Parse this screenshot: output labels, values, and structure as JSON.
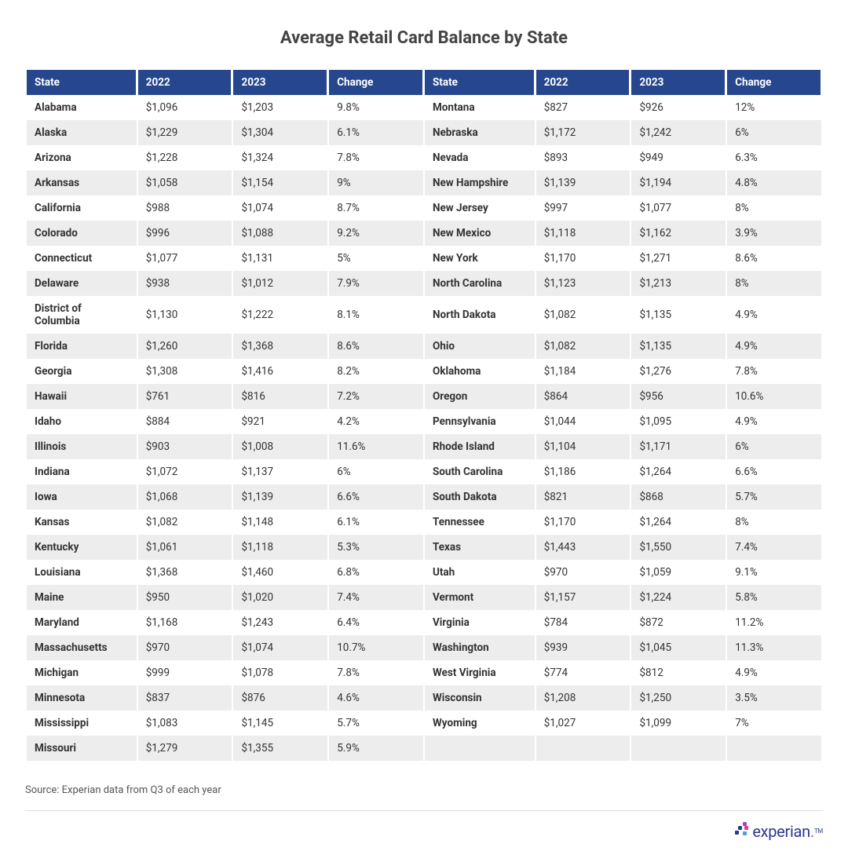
{
  "title": "Average Retail Card Balance by State",
  "source": "Source: Experian data from Q3 of each year",
  "logo_text": "experian",
  "columns_left": [
    "State",
    "2022",
    "2023",
    "Change"
  ],
  "columns_right": [
    "State",
    "2022",
    "2023",
    "Change"
  ],
  "colors": {
    "header_bg": "#26478d",
    "header_text": "#ffffff",
    "row_even_bg": "#ffffff",
    "row_odd_bg": "#ededed",
    "text": "#333333",
    "title": "#444444",
    "source": "#555555",
    "divider": "#dddddd",
    "logo_blue": "#2b388f",
    "logo_pink": "#e63888",
    "logo_purple": "#b03cc7",
    "logo_lightblue": "#4ca0d8"
  },
  "typography": {
    "title_fontsize": 22,
    "table_fontsize": 13.5,
    "source_fontsize": 13,
    "state_fontweight": 700
  },
  "rows": [
    {
      "l": [
        "Alabama",
        "$1,096",
        "$1,203",
        "9.8%"
      ],
      "r": [
        "Montana",
        "$827",
        "$926",
        "12%"
      ]
    },
    {
      "l": [
        "Alaska",
        "$1,229",
        "$1,304",
        "6.1%"
      ],
      "r": [
        "Nebraska",
        "$1,172",
        "$1,242",
        "6%"
      ]
    },
    {
      "l": [
        "Arizona",
        "$1,228",
        "$1,324",
        "7.8%"
      ],
      "r": [
        "Nevada",
        "$893",
        "$949",
        "6.3%"
      ]
    },
    {
      "l": [
        "Arkansas",
        "$1,058",
        "$1,154",
        "9%"
      ],
      "r": [
        "New Hampshire",
        "$1,139",
        "$1,194",
        "4.8%"
      ]
    },
    {
      "l": [
        "California",
        "$988",
        "$1,074",
        "8.7%"
      ],
      "r": [
        "New Jersey",
        "$997",
        "$1,077",
        "8%"
      ]
    },
    {
      "l": [
        "Colorado",
        "$996",
        "$1,088",
        "9.2%"
      ],
      "r": [
        "New Mexico",
        "$1,118",
        "$1,162",
        "3.9%"
      ]
    },
    {
      "l": [
        "Connecticut",
        "$1,077",
        "$1,131",
        "5%"
      ],
      "r": [
        "New York",
        "$1,170",
        "$1,271",
        "8.6%"
      ]
    },
    {
      "l": [
        "Delaware",
        "$938",
        "$1,012",
        "7.9%"
      ],
      "r": [
        "North Carolina",
        "$1,123",
        "$1,213",
        "8%"
      ]
    },
    {
      "l": [
        "District of Columbia",
        "$1,130",
        "$1,222",
        "8.1%"
      ],
      "r": [
        "North Dakota",
        "$1,082",
        "$1,135",
        "4.9%"
      ]
    },
    {
      "l": [
        "Florida",
        "$1,260",
        "$1,368",
        "8.6%"
      ],
      "r": [
        "Ohio",
        "$1,082",
        "$1,135",
        "4.9%"
      ]
    },
    {
      "l": [
        "Georgia",
        "$1,308",
        "$1,416",
        "8.2%"
      ],
      "r": [
        "Oklahoma",
        "$1,184",
        "$1,276",
        "7.8%"
      ]
    },
    {
      "l": [
        "Hawaii",
        "$761",
        "$816",
        "7.2%"
      ],
      "r": [
        "Oregon",
        "$864",
        "$956",
        "10.6%"
      ]
    },
    {
      "l": [
        "Idaho",
        "$884",
        "$921",
        "4.2%"
      ],
      "r": [
        "Pennsylvania",
        "$1,044",
        "$1,095",
        "4.9%"
      ]
    },
    {
      "l": [
        "Illinois",
        "$903",
        "$1,008",
        "11.6%"
      ],
      "r": [
        "Rhode Island",
        "$1,104",
        "$1,171",
        "6%"
      ]
    },
    {
      "l": [
        "Indiana",
        "$1,072",
        "$1,137",
        "6%"
      ],
      "r": [
        "South Carolina",
        "$1,186",
        "$1,264",
        "6.6%"
      ]
    },
    {
      "l": [
        "Iowa",
        "$1,068",
        "$1,139",
        "6.6%"
      ],
      "r": [
        "South Dakota",
        "$821",
        "$868",
        "5.7%"
      ]
    },
    {
      "l": [
        "Kansas",
        "$1,082",
        "$1,148",
        "6.1%"
      ],
      "r": [
        "Tennessee",
        "$1,170",
        "$1,264",
        "8%"
      ]
    },
    {
      "l": [
        "Kentucky",
        "$1,061",
        "$1,118",
        "5.3%"
      ],
      "r": [
        "Texas",
        "$1,443",
        "$1,550",
        "7.4%"
      ]
    },
    {
      "l": [
        "Louisiana",
        "$1,368",
        "$1,460",
        "6.8%"
      ],
      "r": [
        "Utah",
        "$970",
        "$1,059",
        "9.1%"
      ]
    },
    {
      "l": [
        "Maine",
        "$950",
        "$1,020",
        "7.4%"
      ],
      "r": [
        "Vermont",
        "$1,157",
        "$1,224",
        "5.8%"
      ]
    },
    {
      "l": [
        "Maryland",
        "$1,168",
        "$1,243",
        "6.4%"
      ],
      "r": [
        "Virginia",
        "$784",
        "$872",
        "11.2%"
      ]
    },
    {
      "l": [
        "Massachusetts",
        "$970",
        "$1,074",
        "10.7%"
      ],
      "r": [
        "Washington",
        "$939",
        "$1,045",
        "11.3%"
      ]
    },
    {
      "l": [
        "Michigan",
        "$999",
        "$1,078",
        "7.8%"
      ],
      "r": [
        "West Virginia",
        "$774",
        "$812",
        "4.9%"
      ]
    },
    {
      "l": [
        "Minnesota",
        "$837",
        "$876",
        "4.6%"
      ],
      "r": [
        "Wisconsin",
        "$1,208",
        "$1,250",
        "3.5%"
      ]
    },
    {
      "l": [
        "Mississippi",
        "$1,083",
        "$1,145",
        "5.7%"
      ],
      "r": [
        "Wyoming",
        "$1,027",
        "$1,099",
        "7%"
      ]
    },
    {
      "l": [
        "Missouri",
        "$1,279",
        "$1,355",
        "5.9%"
      ],
      "r": [
        "",
        "",
        "",
        ""
      ]
    }
  ]
}
